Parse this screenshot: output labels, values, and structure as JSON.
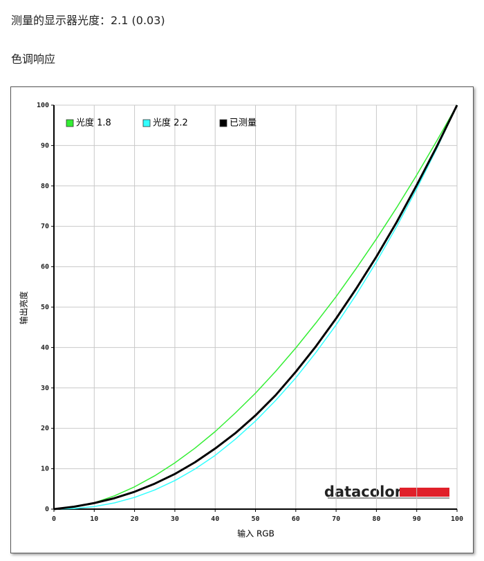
{
  "header": {
    "measured": "测量的显示器光度：2.1 (0.03)",
    "section": "色调响应"
  },
  "logo": "datacolor",
  "chart_data": {
    "type": "line",
    "xlabel": "输入 RGB",
    "ylabel": "输出亮度",
    "x": [
      0,
      5,
      10,
      15,
      20,
      25,
      30,
      35,
      40,
      45,
      50,
      55,
      60,
      65,
      70,
      75,
      80,
      85,
      90,
      95,
      100
    ],
    "series": [
      {
        "name": "光度 1.8",
        "color": "#33ee33",
        "values": [
          0,
          0.46,
          1.58,
          3.29,
          5.52,
          8.25,
          11.45,
          15.1,
          19.2,
          23.8,
          28.7,
          34.1,
          39.9,
          46.1,
          52.6,
          59.6,
          66.9,
          74.6,
          82.7,
          91.2,
          100
        ]
      },
      {
        "name": "光度 2.2",
        "color": "#33ffff",
        "values": [
          0,
          0.14,
          0.63,
          1.54,
          2.9,
          4.74,
          7.07,
          9.93,
          13.3,
          17.3,
          21.8,
          26.9,
          32.5,
          38.8,
          45.6,
          53.1,
          61.2,
          69.9,
          79.3,
          89.3,
          100
        ]
      },
      {
        "name": "已测量",
        "color": "#000000",
        "values": [
          0,
          0.6,
          1.5,
          2.7,
          4.3,
          6.3,
          8.7,
          11.6,
          15,
          18.8,
          23.2,
          28.2,
          34,
          40.3,
          47.2,
          54.6,
          62.5,
          71,
          80.2,
          89.8,
          100
        ]
      }
    ],
    "xlim": [
      0,
      100
    ],
    "ylim": [
      0,
      100
    ],
    "xticks": [
      0,
      10,
      20,
      30,
      40,
      50,
      60,
      70,
      80,
      90,
      100
    ],
    "yticks": [
      0,
      10,
      20,
      30,
      40,
      50,
      60,
      70,
      80,
      90,
      100
    ],
    "grid": true,
    "legend": "upper left"
  }
}
